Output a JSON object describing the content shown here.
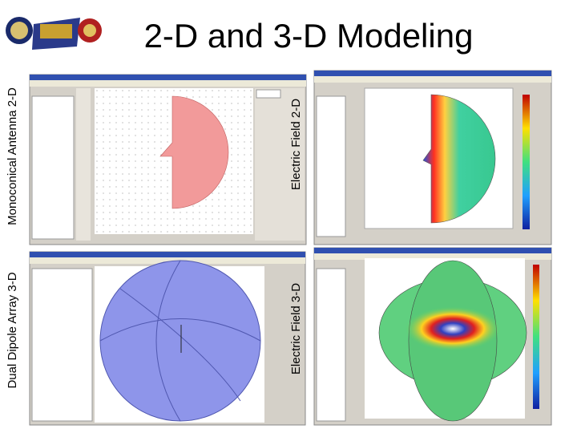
{
  "title": "2-D and 3-D Modeling",
  "panels": [
    {
      "label": "Monoconical Antenna 2-D"
    },
    {
      "label": "Electric Field 2-D"
    },
    {
      "label": "Dual Dipole Array 3-D"
    },
    {
      "label": "Electric Field 3-D"
    }
  ]
}
